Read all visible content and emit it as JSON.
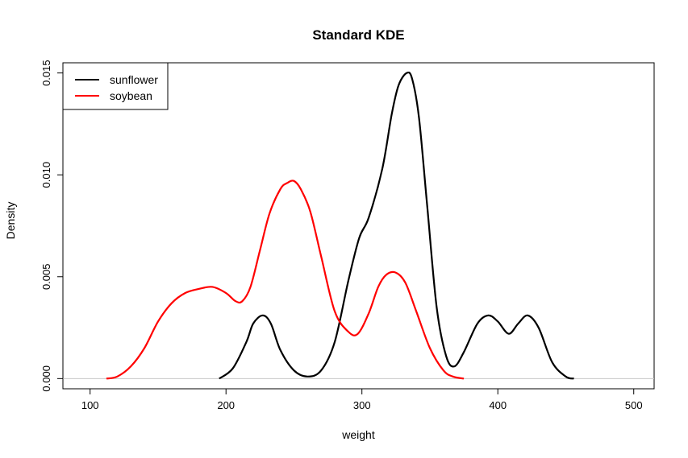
{
  "chart_data": {
    "type": "line",
    "title": "Standard KDE",
    "xlabel": "weight",
    "ylabel": "Density",
    "xlim": [
      80,
      515
    ],
    "ylim": [
      -0.0005,
      0.0155
    ],
    "x_ticks": [
      100,
      200,
      300,
      400,
      500
    ],
    "x_tick_labels": [
      "100",
      "200",
      "300",
      "400",
      "500"
    ],
    "y_ticks": [
      0,
      0.005,
      0.01,
      0.015
    ],
    "y_tick_labels": [
      "0.000",
      "0.005",
      "0.010",
      "0.015"
    ],
    "grid": false,
    "legend_position": "top-left",
    "baseline": 0,
    "series": [
      {
        "name": "sunflower",
        "color": "#000000",
        "x": [
          195,
          205,
          215,
          220,
          227,
          233,
          240,
          250,
          260,
          270,
          280,
          290,
          298,
          305,
          315,
          322,
          327,
          333,
          337,
          342,
          348,
          355,
          362,
          368,
          375,
          385,
          393,
          400,
          408,
          415,
          422,
          430,
          440,
          450,
          456
        ],
        "y": [
          0.0,
          0.0005,
          0.0018,
          0.0027,
          0.0031,
          0.0027,
          0.0014,
          0.0004,
          0.0001,
          0.0004,
          0.0018,
          0.0048,
          0.0069,
          0.0079,
          0.0103,
          0.013,
          0.0144,
          0.015,
          0.0147,
          0.0128,
          0.0085,
          0.0035,
          0.0011,
          0.0006,
          0.0013,
          0.0027,
          0.0031,
          0.0028,
          0.0022,
          0.0027,
          0.0031,
          0.0025,
          0.0008,
          0.0001,
          0.0
        ]
      },
      {
        "name": "soybean",
        "color": "#ff0000",
        "x": [
          112,
          120,
          130,
          140,
          150,
          160,
          170,
          180,
          190,
          200,
          207,
          212,
          218,
          225,
          232,
          240,
          245,
          250,
          255,
          262,
          270,
          280,
          290,
          297,
          305,
          312,
          318,
          325,
          332,
          340,
          350,
          360,
          367,
          375
        ],
        "y": [
          0.0,
          0.0001,
          0.0006,
          0.0015,
          0.0028,
          0.0037,
          0.0042,
          0.0044,
          0.0045,
          0.0042,
          0.0038,
          0.0038,
          0.0045,
          0.0063,
          0.0081,
          0.0093,
          0.0096,
          0.0097,
          0.0093,
          0.0082,
          0.006,
          0.0033,
          0.0023,
          0.0022,
          0.0032,
          0.0045,
          0.0051,
          0.0052,
          0.0047,
          0.0033,
          0.0015,
          0.0004,
          0.0001,
          0.0
        ]
      }
    ]
  }
}
